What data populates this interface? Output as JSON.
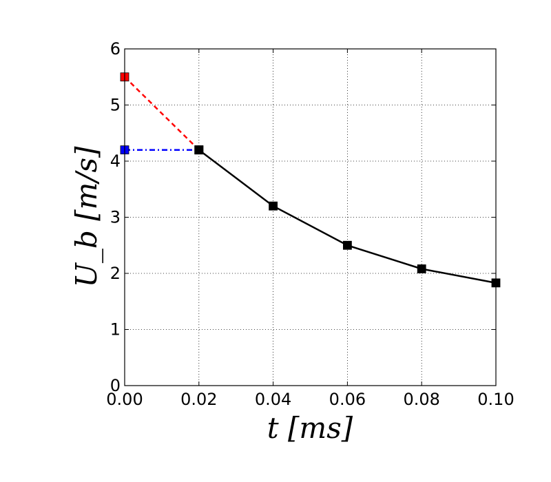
{
  "chart_data": {
    "type": "line",
    "xlabel": "t [ms]",
    "ylabel": "U_b [m/s]",
    "xlim": [
      0.0,
      0.1
    ],
    "ylim": [
      0,
      6
    ],
    "grid": true,
    "x_ticks": [
      "0.00",
      "0.02",
      "0.04",
      "0.06",
      "0.08",
      "0.10"
    ],
    "y_ticks": [
      "0",
      "1",
      "2",
      "3",
      "4",
      "5",
      "6"
    ],
    "series": [
      {
        "style": "solid",
        "marker": "square",
        "color": "#000000",
        "x": [
          0.02,
          0.04,
          0.06,
          0.08,
          0.1
        ],
        "y": [
          4.2,
          3.2,
          2.5,
          2.08,
          1.83
        ]
      },
      {
        "style": "dashed",
        "marker": "square",
        "color": "#ff0000",
        "x": [
          0.0,
          0.02
        ],
        "y": [
          5.5,
          4.2
        ]
      },
      {
        "style": "dashdot",
        "marker": "square",
        "color": "#0000ff",
        "x": [
          0.0,
          0.02
        ],
        "y": [
          4.2,
          4.2
        ]
      }
    ]
  }
}
